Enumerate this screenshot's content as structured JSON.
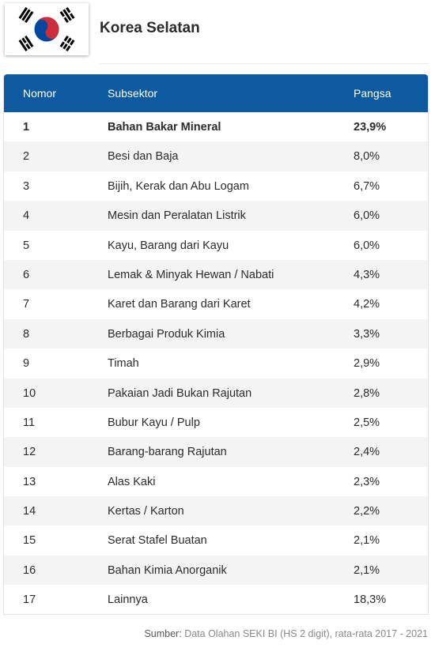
{
  "header": {
    "flag": "south-korea-flag",
    "title": "Korea Selatan"
  },
  "table": {
    "columns": [
      "Nomor",
      "Subsektor",
      "Pangsa"
    ],
    "rows": [
      {
        "no": "1",
        "subsector": "Bahan Bakar Mineral",
        "share": "23,9%"
      },
      {
        "no": "2",
        "subsector": "Besi dan Baja",
        "share": "8,0%"
      },
      {
        "no": "3",
        "subsector": "Bijih, Kerak dan Abu Logam",
        "share": "6,7%"
      },
      {
        "no": "4",
        "subsector": "Mesin dan Peralatan Listrik",
        "share": "6,0%"
      },
      {
        "no": "5",
        "subsector": "Kayu, Barang dari Kayu",
        "share": "6,0%"
      },
      {
        "no": "6",
        "subsector": "Lemak & Minyak Hewan / Nabati",
        "share": "4,3%"
      },
      {
        "no": "7",
        "subsector": "Karet dan Barang dari Karet",
        "share": "4,2%"
      },
      {
        "no": "8",
        "subsector": "Berbagai Produk Kimia",
        "share": "3,3%"
      },
      {
        "no": "9",
        "subsector": "Timah",
        "share": "2,9%"
      },
      {
        "no": "10",
        "subsector": "Pakaian Jadi Bukan Rajutan",
        "share": "2,8%"
      },
      {
        "no": "11",
        "subsector": "Bubur Kayu / Pulp",
        "share": "2,5%"
      },
      {
        "no": "12",
        "subsector": "Barang-barang Rajutan",
        "share": "2,4%"
      },
      {
        "no": "13",
        "subsector": "Alas Kaki",
        "share": "2,3%"
      },
      {
        "no": "14",
        "subsector": "Kertas / Karton",
        "share": "2,2%"
      },
      {
        "no": "15",
        "subsector": "Serat Stafel Buatan",
        "share": "2,1%"
      },
      {
        "no": "16",
        "subsector": "Bahan Kimia Anorganik",
        "share": "2,1%"
      },
      {
        "no": "17",
        "subsector": "Lainnya",
        "share": "18,3%"
      }
    ]
  },
  "source": {
    "label": "Sumber:",
    "text": "Data Olahan SEKI BI (HS 2 digit), rata-rata 2017 - 2021"
  },
  "colors": {
    "header_bg": "#0d5aa0",
    "stripe": "#f4f4f4",
    "flag_red": "#cd2e3a",
    "flag_blue": "#0047a0"
  }
}
